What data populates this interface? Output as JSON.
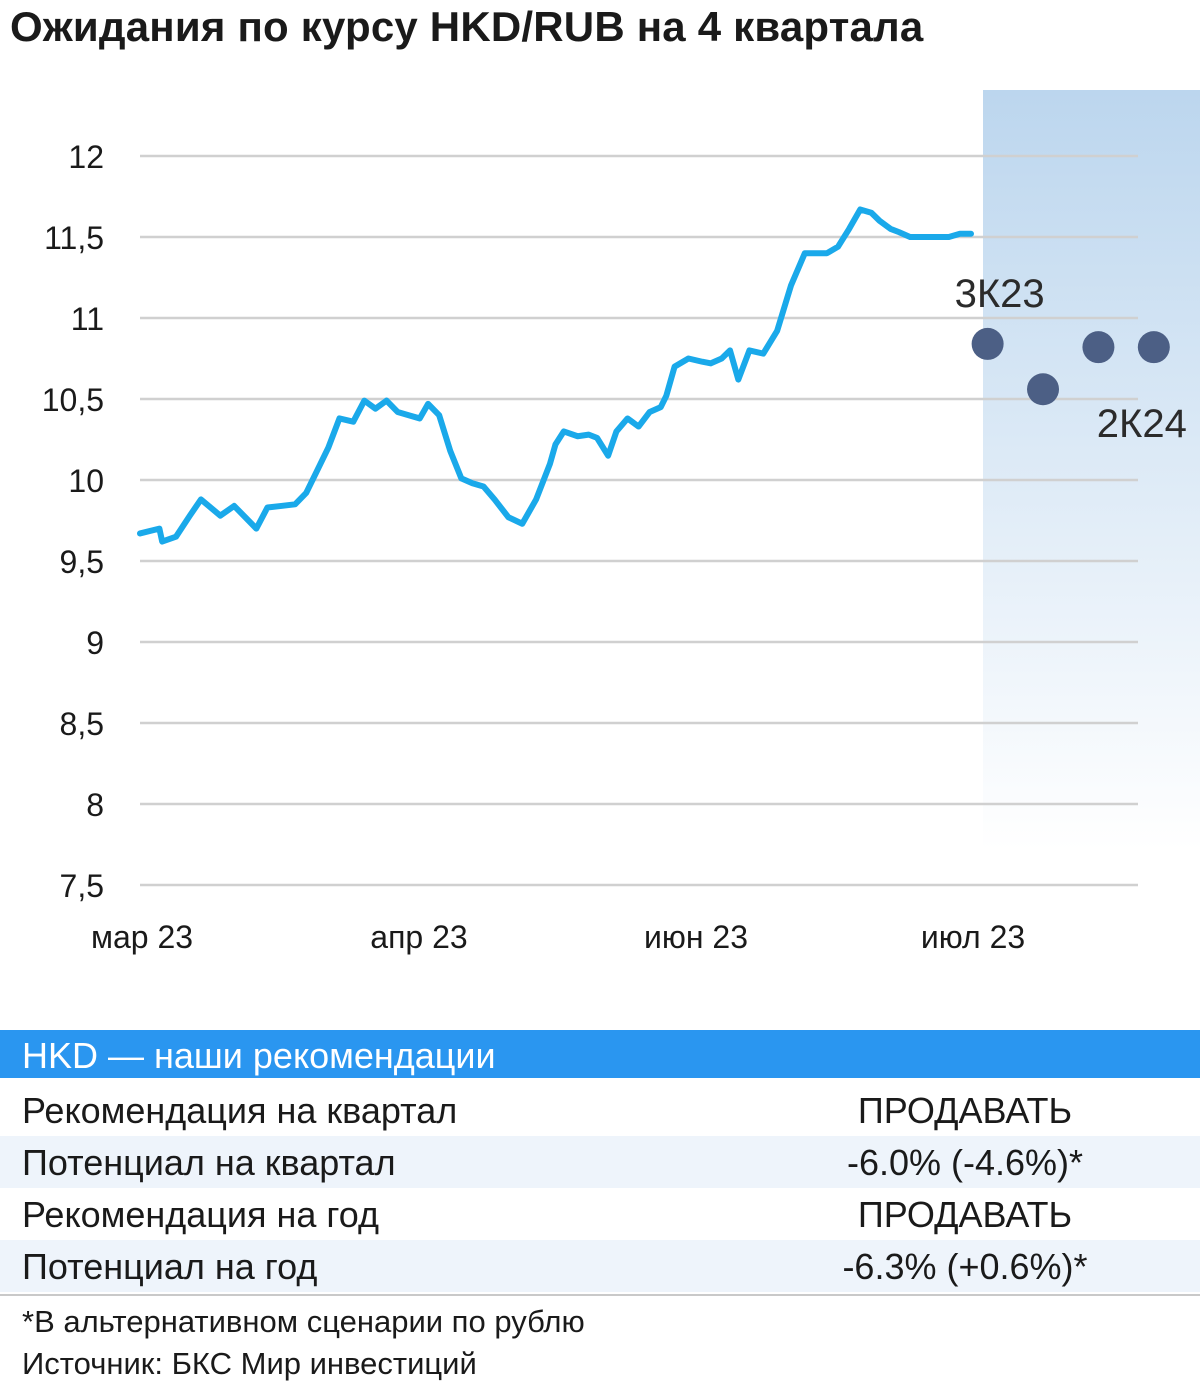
{
  "title": "Ожидания по курсу HKD/RUB на 4 квартала",
  "colors": {
    "line": "#1aa9ea",
    "forecast_dot": "#4c5f85",
    "forecast_area": "#bcd6ee",
    "header": "#2a96f0",
    "grid": "#d0d0d0"
  },
  "chart_data": {
    "type": "line",
    "title": "Ожидания по курсу HKD/RUB на 4 квартала",
    "xlabel": "",
    "ylabel": "",
    "ylim": [
      7.5,
      12
    ],
    "yticks": [
      12,
      11.5,
      11,
      10.5,
      10,
      9.5,
      9,
      8.5,
      8,
      7.5
    ],
    "ytick_labels": [
      "12",
      "11,5",
      "11",
      "10,5",
      "10",
      "9,5",
      "9",
      "8,5",
      "8",
      "7,5"
    ],
    "xticks": [
      0,
      1,
      2,
      3
    ],
    "xtick_labels": [
      "мар 23",
      "апр 23",
      "июн 23",
      "июл 23"
    ],
    "grid": true,
    "forecast_region_start": 3.0,
    "series": [
      {
        "kind": "history",
        "x": [
          0,
          0.07,
          0.08,
          0.13,
          0.18,
          0.22,
          0.29,
          0.34,
          0.38,
          0.42,
          0.46,
          0.51,
          0.56,
          0.6,
          0.64,
          0.68,
          0.72,
          0.77,
          0.81,
          0.85,
          0.89,
          0.93,
          0.97,
          1.01,
          1.04,
          1.08,
          1.12,
          1.16,
          1.2,
          1.24,
          1.28,
          1.33,
          1.38,
          1.43,
          1.48,
          1.5,
          1.53,
          1.58,
          1.62,
          1.65,
          1.69,
          1.72,
          1.76,
          1.8,
          1.84,
          1.88,
          1.9,
          1.93,
          1.98,
          2.03,
          2.06,
          2.1,
          2.13,
          2.16,
          2.2,
          2.25,
          2.3,
          2.35,
          2.4,
          2.44,
          2.48,
          2.52,
          2.56,
          2.6,
          2.64,
          2.67,
          2.71,
          2.74,
          2.78,
          2.81,
          2.85,
          2.89,
          2.92,
          2.96,
          3.0
        ],
        "y": [
          9.67,
          9.7,
          9.62,
          9.65,
          9.78,
          9.88,
          9.78,
          9.84,
          9.77,
          9.7,
          9.83,
          9.84,
          9.85,
          9.92,
          10.06,
          10.2,
          10.38,
          10.36,
          10.49,
          10.44,
          10.49,
          10.42,
          10.4,
          10.38,
          10.47,
          10.4,
          10.18,
          10.01,
          9.98,
          9.96,
          9.88,
          9.77,
          9.73,
          9.88,
          10.1,
          10.22,
          10.3,
          10.27,
          10.28,
          10.26,
          10.15,
          10.3,
          10.38,
          10.33,
          10.42,
          10.45,
          10.52,
          10.7,
          10.75,
          10.73,
          10.72,
          10.75,
          10.8,
          10.62,
          10.8,
          10.78,
          10.92,
          11.2,
          11.4,
          11.4,
          11.4,
          11.44,
          11.55,
          11.67,
          11.65,
          11.6,
          11.55,
          11.53,
          11.5,
          11.5,
          11.5,
          11.5,
          11.5,
          11.52,
          11.52
        ]
      },
      {
        "kind": "forecast",
        "x": [
          3.06,
          3.26,
          3.46,
          3.66
        ],
        "y": [
          10.84,
          10.56,
          10.82,
          10.82
        ],
        "point_labels": [
          "3К23",
          "",
          "",
          "2К24"
        ]
      }
    ]
  },
  "recommendations": {
    "header": "HKD — наши рекомендации",
    "rows": [
      {
        "label": "Рекомендация на квартал",
        "value": "ПРОДАВАТЬ"
      },
      {
        "label": "Потенциал на квартал",
        "value": "-6.0% (-4.6%)*"
      },
      {
        "label": "Рекомендация на год",
        "value": "ПРОДАВАТЬ"
      },
      {
        "label": "Потенциал на год",
        "value": "-6.3% (+0.6%)*"
      }
    ]
  },
  "footnote": "*В альтернативном сценарии по рублю",
  "source": "Источник: БКС Мир инвестиций"
}
